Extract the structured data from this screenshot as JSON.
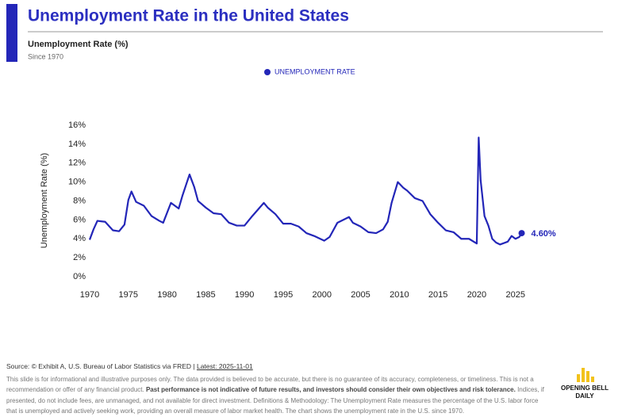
{
  "chart_data": {
    "type": "line",
    "title": "Unemployment Rate in the United States",
    "subtitle": "Unemployment Rate (%)",
    "note": "Since 1970",
    "ylabel": "Unemployment Rate (%)",
    "x": [
      1970.0,
      1970.5,
      1971.0,
      1972.0,
      1973.0,
      1973.8,
      1974.5,
      1975.0,
      1975.4,
      1976.0,
      1977.0,
      1978.0,
      1979.0,
      1979.5,
      1980.5,
      1981.5,
      1982.0,
      1982.9,
      1983.5,
      1984.0,
      1985.0,
      1986.0,
      1987.0,
      1988.0,
      1989.0,
      1990.0,
      1991.0,
      1992.5,
      1993.0,
      1994.0,
      1995.0,
      1996.0,
      1997.0,
      1998.0,
      1999.0,
      2000.3,
      2001.0,
      2002.0,
      2003.5,
      2004.0,
      2005.0,
      2006.0,
      2007.0,
      2007.9,
      2008.5,
      2009.0,
      2009.8,
      2010.5,
      2011.0,
      2012.0,
      2013.0,
      2014.0,
      2015.0,
      2016.0,
      2017.0,
      2018.0,
      2019.0,
      2020.0,
      2020.25,
      2020.5,
      2021.0,
      2021.5,
      2022.0,
      2022.5,
      2023.0,
      2024.0,
      2024.5,
      2025.0,
      2025.5,
      2025.8
    ],
    "series": [
      {
        "name": "UNEMPLOYMENT RATE",
        "color": "#2326b8",
        "values": [
          3.9,
          5.0,
          5.9,
          5.8,
          4.9,
          4.8,
          5.5,
          8.1,
          9.0,
          7.9,
          7.5,
          6.4,
          5.9,
          5.7,
          7.8,
          7.2,
          8.6,
          10.8,
          9.5,
          8.0,
          7.3,
          6.7,
          6.6,
          5.7,
          5.4,
          5.4,
          6.4,
          7.8,
          7.3,
          6.6,
          5.6,
          5.6,
          5.3,
          4.6,
          4.3,
          3.8,
          4.2,
          5.7,
          6.3,
          5.7,
          5.3,
          4.7,
          4.6,
          5.0,
          5.8,
          7.8,
          10.0,
          9.4,
          9.1,
          8.3,
          8.0,
          6.6,
          5.7,
          4.9,
          4.7,
          4.0,
          4.0,
          3.5,
          14.7,
          10.2,
          6.4,
          5.4,
          4.0,
          3.6,
          3.4,
          3.7,
          4.3,
          4.0,
          4.2,
          4.6
        ],
        "value_labels": [
          null,
          null,
          null,
          null,
          null,
          null,
          null,
          null,
          null,
          null,
          null,
          null,
          null,
          null,
          null,
          null,
          null,
          null,
          null,
          null,
          null,
          null,
          null,
          null,
          null,
          null,
          null,
          null,
          null,
          null,
          null,
          null,
          null,
          null,
          null,
          null,
          null,
          null,
          null,
          null,
          null,
          null,
          null,
          null,
          null,
          null,
          null,
          null,
          null,
          null,
          null,
          null,
          null,
          null,
          null,
          null,
          null,
          null,
          null,
          null,
          null,
          null,
          null,
          null,
          null,
          null,
          null,
          null,
          null,
          "4.60%"
        ]
      }
    ],
    "xlim": [
      1970,
      2028
    ],
    "xticks": [
      1970,
      1975,
      1980,
      1985,
      1990,
      1995,
      2000,
      2005,
      2010,
      2015,
      2020,
      2025
    ],
    "ylim": [
      0,
      16
    ],
    "yticks": [
      {
        "value": 0,
        "label": "0%"
      },
      {
        "value": 2,
        "label": "2%"
      },
      {
        "value": 4,
        "label": "4%"
      },
      {
        "value": 6,
        "label": "6%"
      },
      {
        "value": 8,
        "label": "8%"
      },
      {
        "value": 10,
        "label": "10%"
      },
      {
        "value": 12,
        "label": "12%"
      },
      {
        "value": 14,
        "label": "14%"
      },
      {
        "value": 16,
        "label": "16%"
      }
    ],
    "grid": false,
    "legend": "top"
  },
  "footer": {
    "source": "Source: © Exhibit A, U.S. Bureau of Labor Statistics via FRED | ",
    "latest": "Latest: 2025-11-01",
    "disclaimer_a": "This slide is for informational and illustrative purposes only. The data provided is believed to be accurate, but there is no guarantee of its accuracy, completeness, or timeliness. This is not a recommendation or offer of any financial product. ",
    "disclaimer_bold": "Past performance is not indicative of future results, and investors should consider their own objectives and risk tolerance.",
    "disclaimer_b": " Indices, if presented, do not include fees, are unmanaged, and not available for direct investment. Definitions & Methodology: The Unemployment Rate measures the percentage of the U.S. labor force that is unemployed and actively seeking work, providing an overall measure of labor market health. The chart shows the unemployment rate in the U.S. since 1970."
  },
  "logo": {
    "line1": "OPENING BELL",
    "line2": "DAILY"
  }
}
